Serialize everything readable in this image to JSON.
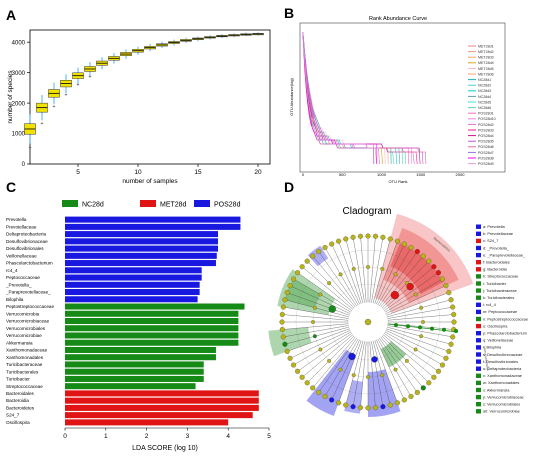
{
  "panels": {
    "a": {
      "letter": "A"
    },
    "b": {
      "letter": "B"
    },
    "c": {
      "letter": "C"
    },
    "d": {
      "letter": "D"
    }
  },
  "chart_data": [
    {
      "type": "box",
      "panel": "A",
      "xlabel": "number of samples",
      "ylabel": "number of species",
      "xlim": [
        1,
        21
      ],
      "ylim": [
        0,
        4400
      ],
      "xticks": [
        5,
        10,
        15,
        20
      ],
      "yticks": [
        0,
        1000,
        2000,
        3000,
        4000
      ],
      "x": [
        1,
        2,
        3,
        4,
        5,
        6,
        7,
        8,
        9,
        10,
        11,
        12,
        13,
        14,
        15,
        16,
        17,
        18,
        19,
        20
      ],
      "medians": [
        1150,
        1850,
        2320,
        2640,
        2900,
        3120,
        3310,
        3470,
        3610,
        3720,
        3820,
        3910,
        3990,
        4060,
        4110,
        4160,
        4200,
        4230,
        4255,
        4270
      ],
      "box_color": "#f2e200",
      "whisker_color": "#3fa9f5"
    },
    {
      "type": "line",
      "panel": "B",
      "title": "Rank Abundance Curve",
      "xlabel": "OTU Rank",
      "ylabel": "OTU Abundance(log)",
      "xlim": [
        0,
        2000
      ],
      "xticks": [
        0,
        500,
        1000,
        1500,
        2000
      ],
      "series": [
        {
          "name": "MET28d1",
          "color": "#f08080"
        },
        {
          "name": "MET28d2",
          "color": "#e9967a"
        },
        {
          "name": "MET28d3",
          "color": "#f4a460"
        },
        {
          "name": "MET28d4",
          "color": "#daa520"
        },
        {
          "name": "MET28d5",
          "color": "#ffb6c1"
        },
        {
          "name": "MET28d6",
          "color": "#ffa07a"
        },
        {
          "name": "NC28d1",
          "color": "#20b2aa"
        },
        {
          "name": "NC28d2",
          "color": "#48d1cc"
        },
        {
          "name": "NC28d3",
          "color": "#00ced1"
        },
        {
          "name": "NC28d4",
          "color": "#5f9ea0"
        },
        {
          "name": "NC28d5",
          "color": "#40e0d0"
        },
        {
          "name": "NC28d6",
          "color": "#66cdaa"
        },
        {
          "name": "POS28d1",
          "color": "#ff69b4"
        },
        {
          "name": "POS28d10",
          "color": "#ee82ee"
        },
        {
          "name": "POS28d2",
          "color": "#da70d6"
        },
        {
          "name": "POS28d3",
          "color": "#ff1493"
        },
        {
          "name": "POS28d4",
          "color": "#c71585"
        },
        {
          "name": "POS28d5",
          "color": "#ba55d3"
        },
        {
          "name": "POS28d6",
          "color": "#db7093"
        },
        {
          "name": "POS28d7",
          "color": "#9370db"
        },
        {
          "name": "POS28d8",
          "color": "#ff00ff"
        },
        {
          "name": "POS28d9",
          "color": "#dda0dd"
        }
      ]
    },
    {
      "type": "bar",
      "panel": "C",
      "orientation": "horizontal",
      "xlabel": "LDA SCORE (log 10)",
      "xlim": [
        0,
        5
      ],
      "xticks": [
        0,
        1,
        2,
        3,
        4,
        5
      ],
      "legend": [
        {
          "name": "NC28d",
          "color": "#168a16"
        },
        {
          "name": "MET28d",
          "color": "#e01414"
        },
        {
          "name": "POS28d",
          "color": "#1818e0"
        }
      ],
      "bars": [
        {
          "label": "Prevotella",
          "value": 4.3,
          "group": "POS28d"
        },
        {
          "label": "Prevotellaceae",
          "value": 4.3,
          "group": "POS28d"
        },
        {
          "label": "Deltaproteobacteria",
          "value": 3.75,
          "group": "POS28d"
        },
        {
          "label": "Desulfovibrionaceae",
          "value": 3.75,
          "group": "POS28d"
        },
        {
          "label": "Desulfovibrionales",
          "value": 3.75,
          "group": "POS28d"
        },
        {
          "label": "Veillonellaceae",
          "value": 3.72,
          "group": "POS28d"
        },
        {
          "label": "Phascolarctobacterium",
          "value": 3.7,
          "group": "POS28d"
        },
        {
          "label": "rc4_4",
          "value": 3.35,
          "group": "POS28d"
        },
        {
          "label": "Peptococcaceae",
          "value": 3.35,
          "group": "POS28d"
        },
        {
          "label": "_Prevotella_",
          "value": 3.3,
          "group": "POS28d"
        },
        {
          "label": "_Paraprevotellaceae_",
          "value": 3.3,
          "group": "POS28d"
        },
        {
          "label": "Bilophila",
          "value": 3.25,
          "group": "POS28d"
        },
        {
          "label": "Peptostreptococcaceae",
          "value": 4.4,
          "group": "NC28d"
        },
        {
          "label": "Verrucomicrobia",
          "value": 4.25,
          "group": "NC28d"
        },
        {
          "label": "Verrucomicrobiaceae",
          "value": 4.25,
          "group": "NC28d"
        },
        {
          "label": "Verrucomicrobiales",
          "value": 4.25,
          "group": "NC28d"
        },
        {
          "label": "Verrucomicrobiae",
          "value": 4.25,
          "group": "NC28d"
        },
        {
          "label": "Akkermansia",
          "value": 4.25,
          "group": "NC28d"
        },
        {
          "label": "Xanthomonadaceae",
          "value": 3.7,
          "group": "NC28d"
        },
        {
          "label": "Xanthomonadales",
          "value": 3.7,
          "group": "NC28d"
        },
        {
          "label": "Turicibacteraceae",
          "value": 3.4,
          "group": "NC28d"
        },
        {
          "label": "Turicibacterales",
          "value": 3.4,
          "group": "NC28d"
        },
        {
          "label": "Turicibacter",
          "value": 3.4,
          "group": "NC28d"
        },
        {
          "label": "Streptococcaceae",
          "value": 3.2,
          "group": "NC28d"
        },
        {
          "label": "Bacteroidales",
          "value": 4.75,
          "group": "MET28d"
        },
        {
          "label": "Bacteroidia",
          "value": 4.75,
          "group": "MET28d"
        },
        {
          "label": "Bacteroidetes",
          "value": 4.75,
          "group": "MET28d"
        },
        {
          "label": "S24_7",
          "value": 4.6,
          "group": "MET28d"
        },
        {
          "label": "Oscillospira",
          "value": 4.0,
          "group": "MET28d"
        }
      ]
    },
    {
      "type": "cladogram",
      "panel": "D",
      "title": "Cladogram",
      "legend": [
        {
          "text": "a: Prevotella",
          "color": "#1818e0"
        },
        {
          "text": "b: Prevotellaceae",
          "color": "#1818e0"
        },
        {
          "text": "c: S24_7",
          "color": "#e01414"
        },
        {
          "text": "d: _Prevotella_",
          "color": "#1818e0"
        },
        {
          "text": "e: _Paraprevotellaceae_",
          "color": "#1818e0"
        },
        {
          "text": "f: Bacteroidales",
          "color": "#e01414"
        },
        {
          "text": "g: Bacteroidia",
          "color": "#e01414"
        },
        {
          "text": "h: Streptococcaceae",
          "color": "#168a16"
        },
        {
          "text": "i: Turicibacter",
          "color": "#168a16"
        },
        {
          "text": "j: Turicibacteraceae",
          "color": "#168a16"
        },
        {
          "text": "k: Turicibacterales",
          "color": "#168a16"
        },
        {
          "text": "l: rc4_4",
          "color": "#1818e0"
        },
        {
          "text": "m: Peptococcaceae",
          "color": "#1818e0"
        },
        {
          "text": "n: Peptostreptococcaceae",
          "color": "#168a16"
        },
        {
          "text": "o: Oscillospira",
          "color": "#e01414"
        },
        {
          "text": "p: Phascolarctobacterium",
          "color": "#1818e0"
        },
        {
          "text": "q: Veillonellaceae",
          "color": "#1818e0"
        },
        {
          "text": "r: Bilophila",
          "color": "#1818e0"
        },
        {
          "text": "s: Desulfovibrionaceae",
          "color": "#1818e0"
        },
        {
          "text": "t: Desulfovibrionales",
          "color": "#1818e0"
        },
        {
          "text": "u: Deltaproteobacteria",
          "color": "#1818e0"
        },
        {
          "text": "v: Xanthomonadaceae",
          "color": "#168a16"
        },
        {
          "text": "w: Xanthomonadales",
          "color": "#168a16"
        },
        {
          "text": "x: Akkermansia",
          "color": "#168a16"
        },
        {
          "text": "y: Verrucomicrobiaceae",
          "color": "#168a16"
        },
        {
          "text": "z: Verrucomicrobiales",
          "color": "#168a16"
        },
        {
          "text": "a0: Verrucomicrobiae",
          "color": "#168a16"
        }
      ],
      "sector_labels": [
        "Bacteroidetes",
        "Verrucomicrobia"
      ]
    }
  ]
}
